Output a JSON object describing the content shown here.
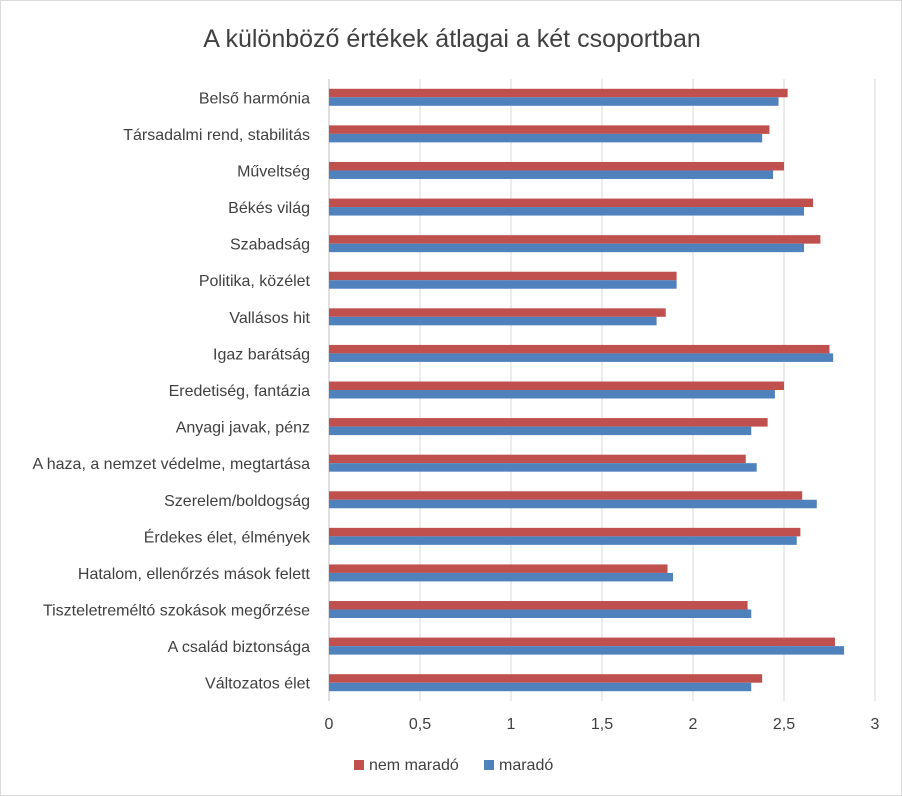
{
  "chart_data": {
    "type": "bar",
    "orientation": "horizontal",
    "title": "A különböző értékek átlagai a két csoportban",
    "categories": [
      "Belső harmónia",
      "Társadalmi rend, stabilitás",
      "Műveltség",
      "Békés világ",
      "Szabadság",
      "Politika, közélet",
      "Vallásos hit",
      "Igaz barátság",
      "Eredetiség, fantázia",
      "Anyagi javak, pénz",
      "A haza, a nemzet védelme, megtartása",
      "Szerelem/boldogság",
      "Érdekes élet, élmények",
      "Hatalom, ellenőrzés mások felett",
      "Tiszteletreméltó szokások megőrzése",
      "A család biztonsága",
      "Változatos élet"
    ],
    "series": [
      {
        "name": "nem maradó",
        "color": "#c0504d",
        "values": [
          2.52,
          2.42,
          2.5,
          2.66,
          2.7,
          1.91,
          1.85,
          2.75,
          2.5,
          2.41,
          2.29,
          2.6,
          2.59,
          1.86,
          2.3,
          2.78,
          2.38
        ]
      },
      {
        "name": "maradó",
        "color": "#4f81bd",
        "values": [
          2.47,
          2.38,
          2.44,
          2.61,
          2.61,
          1.91,
          1.8,
          2.77,
          2.45,
          2.32,
          2.35,
          2.68,
          2.57,
          1.89,
          2.32,
          2.83,
          2.32
        ]
      }
    ],
    "xlim": [
      0,
      3
    ],
    "ticks": [
      "0",
      "0,5",
      "1",
      "1,5",
      "2",
      "2,5",
      "3"
    ],
    "tick_values": [
      0,
      0.5,
      1,
      1.5,
      2,
      2.5,
      3
    ],
    "xlabel": "",
    "ylabel": "",
    "grid": true,
    "legend": "bottom"
  }
}
